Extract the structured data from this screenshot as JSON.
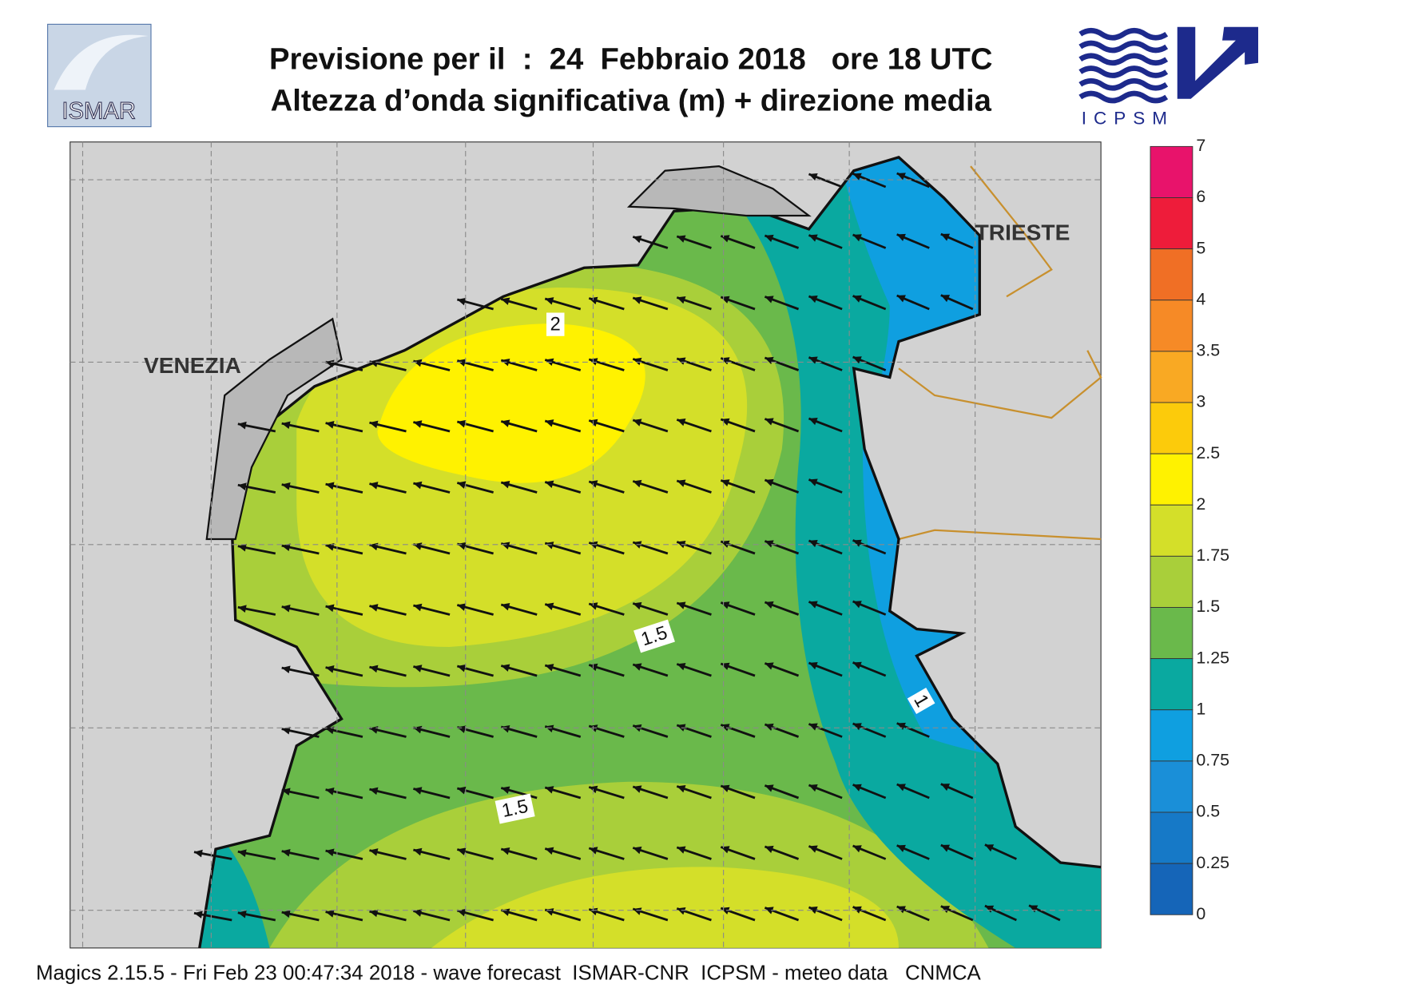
{
  "header": {
    "title_line1": "Previsione per il  :  24  Febbraio 2018   ore 18 UTC",
    "title_line2": "Altezza d’onda significativa (m) + direzione media"
  },
  "logos": {
    "left": "ISMAR",
    "right": "ICPSM"
  },
  "map": {
    "places": [
      "VENEZIA",
      "TRIESTE"
    ],
    "contour_labels": [
      "2",
      "1.5",
      "1.5",
      "1"
    ]
  },
  "colorbar": {
    "levels": [
      7,
      6,
      5,
      4,
      3.5,
      3,
      2.5,
      2,
      1.75,
      1.5,
      1.25,
      1,
      0.75,
      0.5,
      0.25,
      0
    ],
    "colors": [
      "#e8136b",
      "#ee1c3a",
      "#f06f25",
      "#f68a26",
      "#f9a923",
      "#fccb0b",
      "#fff200",
      "#d4df29",
      "#a9cf3a",
      "#6ab94b",
      "#0aa9a0",
      "#0f9fe0",
      "#1a8fd8",
      "#1679c7",
      "#1565b8"
    ]
  },
  "footer": "Magics 2.15.5 - Fri Feb 23 00:47:34 2018 - wave forecast  ISMAR-CNR  ICPSM - meteo data   CNMCA"
}
